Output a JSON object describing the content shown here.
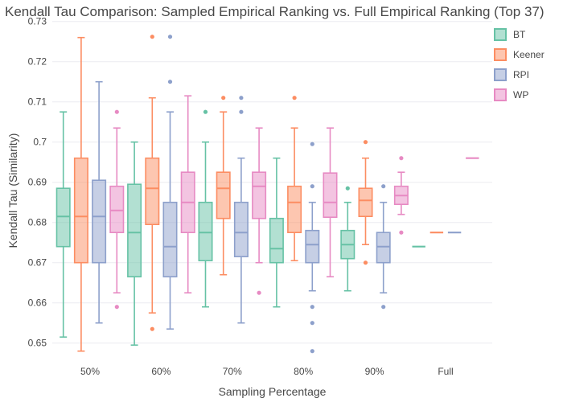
{
  "chart_data": {
    "type": "box",
    "title": "Kendall Tau Comparison: Sampled Empirical Ranking vs. Full Empirical Ranking (Top 37)",
    "xlabel": "Sampling Percentage",
    "ylabel": "Kendall Tau (Similarity)",
    "categories": [
      "50%",
      "60%",
      "70%",
      "80%",
      "90%",
      "Full"
    ],
    "y_ticks": [
      "0.65",
      "0.66",
      "0.67",
      "0.68",
      "0.69",
      "0.7",
      "0.71",
      "0.72",
      "0.73"
    ],
    "ylim": [
      0.646,
      0.73
    ],
    "grid": true,
    "grid_color": "#ebecf0",
    "text_color": "#474747",
    "legend_position": "top-right",
    "series": [
      {
        "name": "BT",
        "color": "#66c2a5",
        "boxes": [
          {
            "category": "50%",
            "low": 0.6515,
            "q1": 0.674,
            "median": 0.6815,
            "q3": 0.6885,
            "high": 0.7075,
            "outliers": []
          },
          {
            "category": "60%",
            "low": 0.6495,
            "q1": 0.6665,
            "median": 0.6775,
            "q3": 0.6895,
            "high": 0.7,
            "outliers": []
          },
          {
            "category": "70%",
            "low": 0.659,
            "q1": 0.6705,
            "median": 0.6775,
            "q3": 0.685,
            "high": 0.7,
            "outliers": [
              0.7075
            ]
          },
          {
            "category": "80%",
            "low": 0.659,
            "q1": 0.67,
            "median": 0.6735,
            "q3": 0.681,
            "high": 0.696,
            "outliers": []
          },
          {
            "category": "90%",
            "low": 0.663,
            "q1": 0.671,
            "median": 0.6745,
            "q3": 0.678,
            "high": 0.685,
            "outliers": [
              0.6885
            ]
          },
          {
            "category": "Full",
            "low": 0.674,
            "q1": 0.674,
            "median": 0.674,
            "q3": 0.674,
            "high": 0.674,
            "outliers": []
          }
        ]
      },
      {
        "name": "Keener",
        "color": "#fc8d62",
        "boxes": [
          {
            "category": "50%",
            "low": 0.648,
            "q1": 0.67,
            "median": 0.6815,
            "q3": 0.696,
            "high": 0.726,
            "outliers": []
          },
          {
            "category": "60%",
            "low": 0.6575,
            "q1": 0.6795,
            "median": 0.6885,
            "q3": 0.696,
            "high": 0.711,
            "outliers": [
              0.7262,
              0.6535
            ]
          },
          {
            "category": "70%",
            "low": 0.667,
            "q1": 0.681,
            "median": 0.6885,
            "q3": 0.6925,
            "high": 0.7075,
            "outliers": [
              0.711
            ]
          },
          {
            "category": "80%",
            "low": 0.6705,
            "q1": 0.6775,
            "median": 0.685,
            "q3": 0.689,
            "high": 0.7035,
            "outliers": [
              0.711
            ]
          },
          {
            "category": "90%",
            "low": 0.6745,
            "q1": 0.6815,
            "median": 0.6855,
            "q3": 0.6885,
            "high": 0.696,
            "outliers": [
              0.7,
              0.67
            ]
          },
          {
            "category": "Full",
            "low": 0.6775,
            "q1": 0.6775,
            "median": 0.6775,
            "q3": 0.6775,
            "high": 0.6775,
            "outliers": []
          }
        ]
      },
      {
        "name": "RPI",
        "color": "#8da0cb",
        "boxes": [
          {
            "category": "50%",
            "low": 0.655,
            "q1": 0.67,
            "median": 0.6815,
            "q3": 0.6905,
            "high": 0.715,
            "outliers": []
          },
          {
            "category": "60%",
            "low": 0.6535,
            "q1": 0.6665,
            "median": 0.674,
            "q3": 0.685,
            "high": 0.7075,
            "outliers": [
              0.7262,
              0.715
            ]
          },
          {
            "category": "70%",
            "low": 0.655,
            "q1": 0.6715,
            "median": 0.6775,
            "q3": 0.685,
            "high": 0.696,
            "outliers": [
              0.711,
              0.7075
            ]
          },
          {
            "category": "80%",
            "low": 0.663,
            "q1": 0.67,
            "median": 0.6745,
            "q3": 0.678,
            "high": 0.685,
            "outliers": [
              0.6995,
              0.689,
              0.659,
              0.655,
              0.648
            ]
          },
          {
            "category": "90%",
            "low": 0.6625,
            "q1": 0.67,
            "median": 0.674,
            "q3": 0.6775,
            "high": 0.685,
            "outliers": [
              0.689,
              0.659
            ]
          },
          {
            "category": "Full",
            "low": 0.6775,
            "q1": 0.6775,
            "median": 0.6775,
            "q3": 0.6775,
            "high": 0.6775,
            "outliers": []
          }
        ]
      },
      {
        "name": "WP",
        "color": "#e78ac3",
        "boxes": [
          {
            "category": "50%",
            "low": 0.6625,
            "q1": 0.6775,
            "median": 0.683,
            "q3": 0.689,
            "high": 0.7035,
            "outliers": [
              0.7075,
              0.659
            ]
          },
          {
            "category": "60%",
            "low": 0.6625,
            "q1": 0.6775,
            "median": 0.685,
            "q3": 0.6925,
            "high": 0.7115,
            "outliers": []
          },
          {
            "category": "70%",
            "low": 0.67,
            "q1": 0.681,
            "median": 0.689,
            "q3": 0.6925,
            "high": 0.7035,
            "outliers": [
              0.6625
            ]
          },
          {
            "category": "80%",
            "low": 0.6665,
            "q1": 0.6813,
            "median": 0.685,
            "q3": 0.6923,
            "high": 0.7035,
            "outliers": []
          },
          {
            "category": "90%",
            "low": 0.682,
            "q1": 0.6845,
            "median": 0.6867,
            "q3": 0.689,
            "high": 0.6925,
            "outliers": [
              0.696,
              0.6775
            ]
          },
          {
            "category": "Full",
            "low": 0.696,
            "q1": 0.696,
            "median": 0.696,
            "q3": 0.696,
            "high": 0.696,
            "outliers": []
          }
        ]
      }
    ]
  }
}
